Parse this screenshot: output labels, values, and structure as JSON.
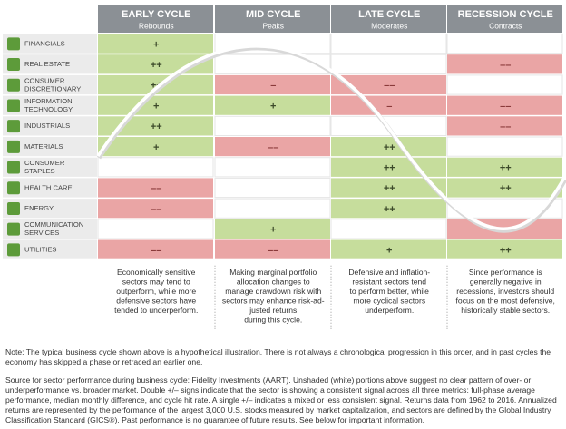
{
  "header": {
    "columns": [
      {
        "title": "EARLY CYCLE",
        "subtitle": "Rebounds"
      },
      {
        "title": "MID CYCLE",
        "subtitle": "Peaks"
      },
      {
        "title": "LATE CYCLE",
        "subtitle": "Moderates"
      },
      {
        "title": "RECESSION CYCLE",
        "subtitle": "Contracts"
      }
    ]
  },
  "rows": [
    {
      "label": [
        "FINANCIALS"
      ],
      "cells": [
        {
          "signal": "+",
          "shade": "green"
        },
        null,
        null,
        null
      ]
    },
    {
      "label": [
        "REAL ESTATE"
      ],
      "cells": [
        {
          "signal": "++",
          "shade": "green"
        },
        null,
        null,
        {
          "signal": "––",
          "shade": "red"
        }
      ]
    },
    {
      "label": [
        "CONSUMER",
        "DISCRETIONARY"
      ],
      "cells": [
        {
          "signal": "++",
          "shade": "green"
        },
        {
          "signal": "–",
          "shade": "red"
        },
        {
          "signal": "––",
          "shade": "red"
        },
        null
      ]
    },
    {
      "label": [
        "INFORMATION",
        "TECHNOLOGY"
      ],
      "cells": [
        {
          "signal": "+",
          "shade": "green"
        },
        {
          "signal": "+",
          "shade": "green"
        },
        {
          "signal": "–",
          "shade": "red"
        },
        {
          "signal": "––",
          "shade": "red"
        }
      ]
    },
    {
      "label": [
        "INDUSTRIALS"
      ],
      "cells": [
        {
          "signal": "++",
          "shade": "green"
        },
        null,
        null,
        {
          "signal": "––",
          "shade": "red"
        }
      ]
    },
    {
      "label": [
        "MATERIALS"
      ],
      "cells": [
        {
          "signal": "+",
          "shade": "green"
        },
        {
          "signal": "––",
          "shade": "red"
        },
        {
          "signal": "++",
          "shade": "green"
        },
        null
      ]
    },
    {
      "label": [
        "CONSUMER",
        "STAPLES"
      ],
      "cells": [
        null,
        null,
        {
          "signal": "++",
          "shade": "green"
        },
        {
          "signal": "++",
          "shade": "green"
        }
      ]
    },
    {
      "label": [
        "HEALTH CARE"
      ],
      "cells": [
        {
          "signal": "––",
          "shade": "red"
        },
        null,
        {
          "signal": "++",
          "shade": "green"
        },
        {
          "signal": "++",
          "shade": "green"
        }
      ]
    },
    {
      "label": [
        "ENERGY"
      ],
      "cells": [
        {
          "signal": "––",
          "shade": "red"
        },
        null,
        {
          "signal": "++",
          "shade": "green"
        },
        null
      ]
    },
    {
      "label": [
        "COMMUNICATION",
        "SERVICES"
      ],
      "cells": [
        null,
        {
          "signal": "+",
          "shade": "green"
        },
        null,
        {
          "signal": "–",
          "shade": "red"
        }
      ]
    },
    {
      "label": [
        "UTILITIES"
      ],
      "cells": [
        {
          "signal": "––",
          "shade": "red"
        },
        {
          "signal": "––",
          "shade": "red"
        },
        {
          "signal": "+",
          "shade": "green"
        },
        {
          "signal": "++",
          "shade": "green"
        }
      ]
    }
  ],
  "descriptions": [
    [
      "Economically sensitive",
      "sectors may tend to",
      "outperform, while more",
      "defensive sectors have",
      "tended to underperform."
    ],
    [
      "Making marginal portfolio",
      "allocation changes to",
      "manage drawdown risk with",
      "sectors may enhance risk-ad-",
      "justed returns",
      "during this cycle."
    ],
    [
      "Defensive and inflation-",
      "resistant sectors tend",
      "to perform better, while",
      "more cyclical sectors",
      "underperform."
    ],
    [
      "Since performance is",
      "generally negative in",
      "recessions, investors should",
      "focus on the most defensive,",
      "historically stable sectors."
    ]
  ],
  "notes": [
    "Note: The typical business cycle shown above is a hypothetical illustration. There is not always a chronological progression in this order, and in past cycles the economy has skipped a phase or retraced an earlier one.",
    "Source for sector performance during business cycle: Fidelity Investments (AART). Unshaded (white) portions above suggest no clear pattern of over- or underperformance vs. broader market. Double +/– signs indicate that the sector is showing a consistent signal across all three metrics: full-phase average performance, median monthly difference, and cycle hit rate. A single +/– indicates a mixed or less consistent signal. Returns data from 1962 to 2016. Annualized returns are represented by the performance of the largest 3,000 U.S. stocks measured by market capitalization, and sectors are defined by the Global Industry Classification Standard (GICS®). Past performance is no guarantee of future results. See below for important information."
  ]
}
